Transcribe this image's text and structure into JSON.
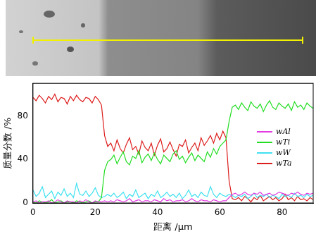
{
  "chart_data": {
    "type": "line",
    "x_label": "距离 /μm",
    "y_label": "质量分数 /%",
    "x": [
      0,
      1,
      2,
      3,
      4,
      5,
      6,
      7,
      8,
      9,
      10,
      11,
      12,
      13,
      14,
      15,
      16,
      17,
      18,
      19,
      20,
      21,
      22,
      23,
      24,
      25,
      26,
      27,
      28,
      29,
      30,
      31,
      32,
      33,
      34,
      35,
      36,
      37,
      38,
      39,
      40,
      41,
      42,
      43,
      44,
      45,
      46,
      47,
      48,
      49,
      50,
      51,
      52,
      53,
      54,
      55,
      56,
      57,
      58,
      59,
      60,
      61,
      62,
      63,
      64,
      65,
      66,
      67,
      68,
      69,
      70,
      71,
      72,
      73,
      74,
      75,
      76,
      77,
      78,
      79,
      80,
      81,
      82,
      83,
      84,
      85,
      86,
      87,
      88,
      89,
      90
    ],
    "series": [
      {
        "name": "wAl",
        "color": "#e23be2",
        "values": [
          1,
          2,
          0,
          1,
          1,
          2,
          0,
          1,
          3,
          1,
          0,
          2,
          1,
          1,
          0,
          2,
          1,
          3,
          1,
          0,
          2,
          1,
          1,
          2,
          1,
          2,
          1,
          3,
          2,
          1,
          2,
          4,
          1,
          2,
          3,
          1,
          2,
          2,
          1,
          3,
          2,
          1,
          4,
          2,
          3,
          1,
          2,
          2,
          3,
          1,
          2,
          4,
          2,
          1,
          3,
          2,
          2,
          1,
          3,
          2,
          1,
          2,
          2,
          5,
          8,
          9,
          7,
          8,
          10,
          8,
          7,
          9,
          8,
          10,
          7,
          8,
          9,
          7,
          8,
          10,
          9,
          8,
          7,
          9,
          8,
          10,
          8,
          7,
          9,
          8,
          9
        ]
      },
      {
        "name": "wTi",
        "color": "#22dd22",
        "values": [
          1,
          0,
          2,
          1,
          0,
          1,
          3,
          0,
          1,
          2,
          0,
          1,
          1,
          0,
          2,
          1,
          0,
          1,
          2,
          0,
          1,
          1,
          5,
          30,
          38,
          40,
          44,
          36,
          42,
          47,
          38,
          35,
          43,
          41,
          48,
          37,
          42,
          45,
          39,
          46,
          40,
          36,
          44,
          41,
          38,
          45,
          48,
          40,
          43,
          37,
          42,
          46,
          39,
          44,
          41,
          38,
          47,
          42,
          50,
          45,
          52,
          55,
          58,
          75,
          88,
          90,
          86,
          92,
          88,
          85,
          93,
          89,
          87,
          91,
          84,
          90,
          94,
          88,
          86,
          92,
          89,
          87,
          91,
          85,
          93,
          88,
          90,
          86,
          92,
          89,
          87
        ]
      },
      {
        "name": "wW",
        "color": "#3ee0f0",
        "values": [
          12,
          6,
          9,
          15,
          5,
          8,
          11,
          4,
          10,
          7,
          13,
          6,
          9,
          5,
          18,
          8,
          7,
          11,
          6,
          9,
          14,
          7,
          5,
          6,
          8,
          6,
          9,
          5,
          7,
          10,
          4,
          8,
          6,
          12,
          5,
          7,
          9,
          4,
          8,
          6,
          11,
          5,
          7,
          10,
          6,
          8,
          5,
          9,
          4,
          7,
          12,
          6,
          8,
          5,
          10,
          7,
          6,
          15,
          8,
          5,
          9,
          7,
          6,
          8,
          7,
          5,
          7,
          6,
          8,
          4,
          6,
          9,
          5,
          7,
          6,
          8,
          5,
          7,
          6,
          4,
          8,
          6,
          7,
          5,
          9,
          6,
          7,
          5,
          8,
          6,
          7
        ]
      },
      {
        "name": "wTa",
        "color": "#dd1c1c",
        "values": [
          97,
          94,
          99,
          96,
          92,
          98,
          95,
          100,
          93,
          97,
          96,
          91,
          98,
          94,
          99,
          95,
          93,
          97,
          96,
          92,
          98,
          95,
          90,
          62,
          52,
          55,
          48,
          58,
          50,
          46,
          54,
          60,
          49,
          52,
          45,
          57,
          51,
          48,
          55,
          44,
          53,
          59,
          47,
          50,
          56,
          49,
          43,
          54,
          52,
          58,
          46,
          51,
          55,
          48,
          60,
          53,
          57,
          62,
          55,
          64,
          58,
          66,
          60,
          20,
          4,
          3,
          5,
          2,
          6,
          4,
          1,
          5,
          3,
          7,
          2,
          4,
          6,
          3,
          5,
          2,
          4,
          8,
          3,
          5,
          2,
          6,
          3,
          4,
          2,
          5,
          3
        ]
      }
    ],
    "xlim": [
      0,
      90
    ],
    "ylim": [
      0,
      110
    ],
    "xticks": [
      0,
      20,
      40,
      60,
      80
    ],
    "yticks": [
      0,
      40,
      80
    ],
    "grid": false,
    "legend": "right"
  }
}
